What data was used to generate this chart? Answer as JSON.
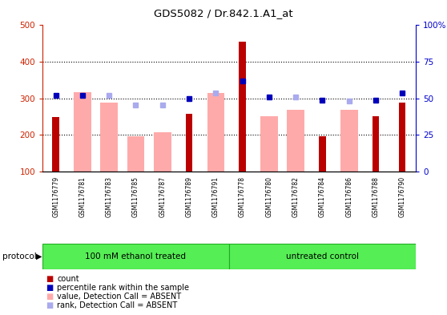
{
  "title": "GDS5082 / Dr.842.1.A1_at",
  "samples": [
    "GSM1176779",
    "GSM1176781",
    "GSM1176783",
    "GSM1176785",
    "GSM1176787",
    "GSM1176789",
    "GSM1176791",
    "GSM1176778",
    "GSM1176780",
    "GSM1176782",
    "GSM1176784",
    "GSM1176786",
    "GSM1176788",
    "GSM1176790"
  ],
  "count_values": [
    250,
    null,
    null,
    null,
    null,
    258,
    null,
    455,
    null,
    null,
    197,
    null,
    252,
    288
  ],
  "pink_bar_values": [
    null,
    318,
    288,
    196,
    207,
    null,
    315,
    null,
    252,
    268,
    null,
    268,
    null,
    null
  ],
  "rank_dark_blue": [
    308,
    308,
    null,
    null,
    null,
    300,
    null,
    347,
    305,
    null,
    296,
    null,
    296,
    314
  ],
  "rank_light_blue": [
    null,
    null,
    308,
    282,
    282,
    null,
    315,
    null,
    null,
    304,
    null,
    294,
    null,
    null
  ],
  "ylim_left": [
    100,
    500
  ],
  "ylim_right": [
    0,
    100
  ],
  "yticks_left": [
    100,
    200,
    300,
    400,
    500
  ],
  "yticks_right": [
    0,
    25,
    50,
    75,
    100
  ],
  "yticklabels_right": [
    "0",
    "25",
    "50",
    "75",
    "100%"
  ],
  "protocol_groups": [
    {
      "label": "100 mM ethanol treated",
      "start": 0,
      "end": 7
    },
    {
      "label": "untreated control",
      "start": 7,
      "end": 14
    }
  ],
  "pink_color": "#ffaaaa",
  "dark_red_color": "#bb0000",
  "dark_blue_color": "#0000bb",
  "light_blue_color": "#aaaaee",
  "legend_items": [
    {
      "label": "count",
      "color": "#bb0000"
    },
    {
      "label": "percentile rank within the sample",
      "color": "#0000bb"
    },
    {
      "label": "value, Detection Call = ABSENT",
      "color": "#ffaaaa"
    },
    {
      "label": "rank, Detection Call = ABSENT",
      "color": "#aaaaee"
    }
  ],
  "background_color": "#ffffff",
  "label_bg_color": "#d8d8d8",
  "green_color1": "#55ee55",
  "green_color2": "#55ee55",
  "green_edge_color": "#22aa22"
}
